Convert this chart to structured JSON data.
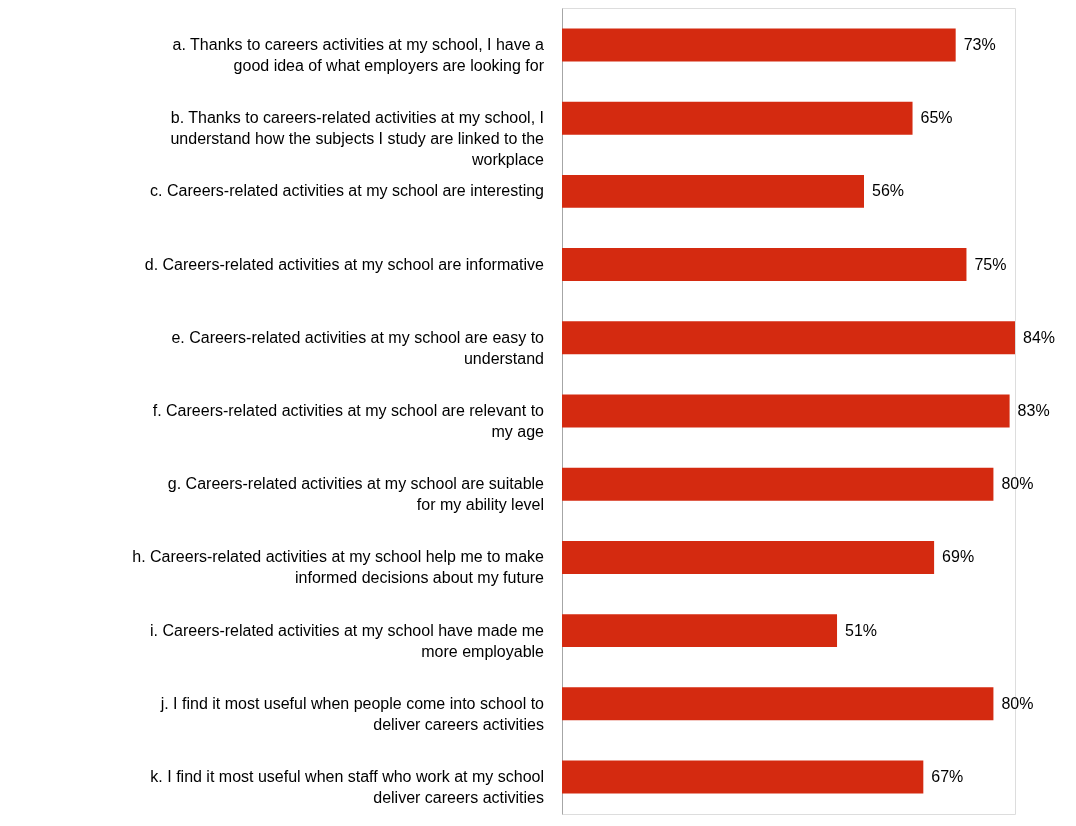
{
  "chart_data": {
    "type": "bar",
    "orientation": "horizontal",
    "categories": [
      "a. Thanks to careers activities at my school, I have a good idea of what employers are looking for",
      "b. Thanks to careers-related activities at my school, I understand how the subjects I study are linked to the workplace",
      "c. Careers-related activities at my school are interesting",
      "d. Careers-related activities at my school are informative",
      "e. Careers-related activities at my school are easy to understand",
      "f. Careers-related activities at my school are relevant to my age",
      "g. Careers-related activities at my school are suitable for my ability level",
      "h. Careers-related activities at my school help me to make informed decisions about my future",
      "i. Careers-related activities at my school have made me more employable",
      "j. I find it most useful when people come into school to deliver careers activities",
      "k. I find it most useful when staff who work at my school deliver careers activities"
    ],
    "values": [
      73,
      65,
      56,
      75,
      84,
      83,
      80,
      69,
      51,
      80,
      67
    ],
    "value_labels": [
      "73%",
      "65%",
      "56%",
      "75%",
      "84%",
      "83%",
      "80%",
      "69%",
      "51%",
      "80%",
      "67%"
    ],
    "color": "#d42a10",
    "grid": false
  }
}
